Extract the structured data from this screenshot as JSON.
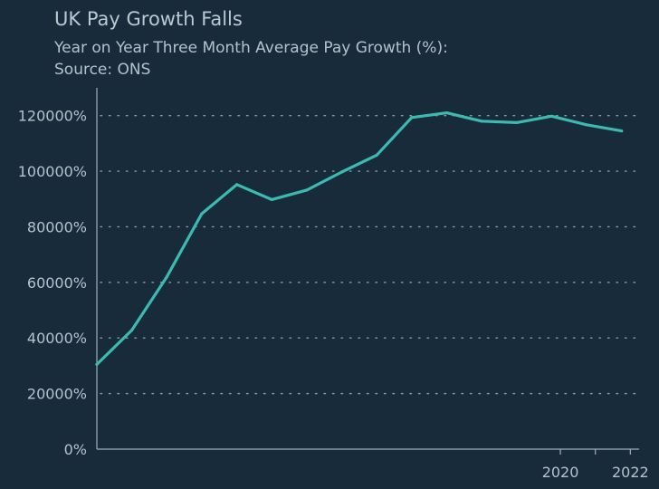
{
  "colors": {
    "background": "#172b3a",
    "line": "#3cbab1",
    "grid": "#8a9ba5",
    "axis": "#9fb1bb"
  },
  "chart_data": {
    "type": "line",
    "title": "UK Pay Growth Falls",
    "subtitle": "Year on Year Three Month Average Pay Growth (%):",
    "source": "Source: ONS",
    "xlabel": "",
    "ylabel": "",
    "grid": "horizontal dotted",
    "legend": "none",
    "xlim": [
      2006.75,
      2022.25
    ],
    "ylim": [
      0,
      130000
    ],
    "x_ticks": [
      2020,
      2021,
      2022
    ],
    "x_tick_labels": [
      "2020",
      "",
      "2022"
    ],
    "y_ticks": [
      0,
      20000,
      40000,
      60000,
      80000,
      100000,
      120000
    ],
    "y_tick_labels": [
      "0%",
      "20000%",
      "40000%",
      "60000%",
      "80000%",
      "100000%",
      "120000%"
    ],
    "series": [
      {
        "x": [
          2006.75,
          2007.75,
          2008.75,
          2009.75,
          2010.75,
          2011.75,
          2012.75,
          2013.75,
          2014.75,
          2015.75,
          2016.75,
          2017.75,
          2018.75,
          2019.75,
          2020.75,
          2021.75
        ],
        "values": [
          30500,
          42800,
          62000,
          84700,
          95200,
          89800,
          93200,
          99700,
          105800,
          119300,
          121000,
          118000,
          117500,
          119800,
          116700,
          114500
        ]
      }
    ]
  }
}
